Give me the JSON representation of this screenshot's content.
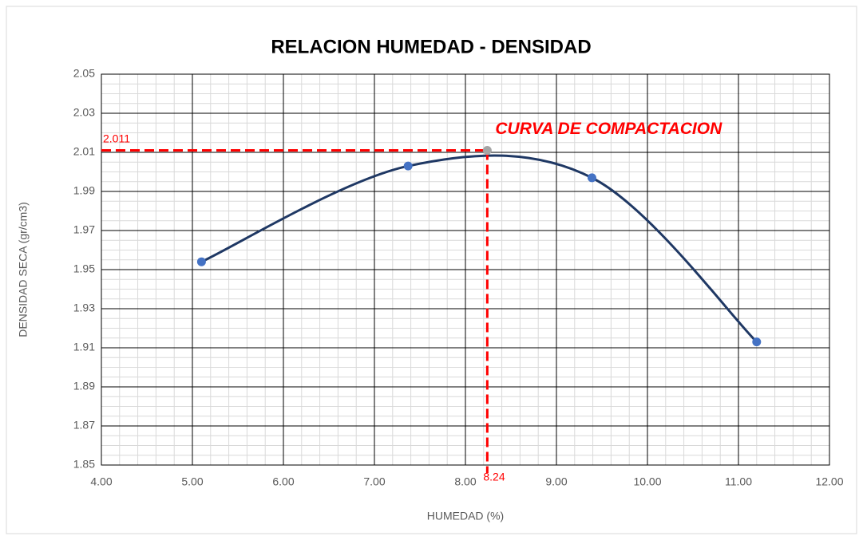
{
  "chart_data": {
    "type": "scatter_smooth",
    "title": "RELACION HUMEDAD - DENSIDAD",
    "x_label": "HUMEDAD  (%)",
    "y_label": "DENSIDAD SECA (gr/cm3)",
    "annotation": "CURVA DE COMPACTACION",
    "series": [
      {
        "color": "#1f3864",
        "marker_color": "#4472c4",
        "x": [
          5.1,
          7.37,
          9.39,
          11.2
        ],
        "values": [
          1.954,
          2.003,
          1.997,
          1.913
        ]
      }
    ],
    "optimum": {
      "x": 8.24,
      "y": 2.011,
      "color": "#ff0000",
      "marker_color": "#a5a5a5"
    },
    "xlim": [
      4,
      12
    ],
    "xticks": [
      {
        "value": 4,
        "label": "4.00"
      },
      {
        "value": 5,
        "label": "5.00"
      },
      {
        "value": 6,
        "label": "6.00"
      },
      {
        "value": 7,
        "label": "7.00"
      },
      {
        "value": 8,
        "label": "8.00"
      },
      {
        "value": 9,
        "label": "9.00"
      },
      {
        "value": 10,
        "label": "10.00"
      },
      {
        "value": 11,
        "label": "11.00"
      },
      {
        "value": 12,
        "label": "12.00"
      }
    ],
    "ylim": [
      1.85,
      2.05
    ],
    "yticks": [
      1.85,
      1.87,
      1.89,
      1.91,
      1.93,
      1.95,
      1.97,
      1.99,
      2.01,
      2.03,
      2.05
    ],
    "grid": true,
    "minor_grid": {
      "x": 5,
      "y": 4
    }
  }
}
